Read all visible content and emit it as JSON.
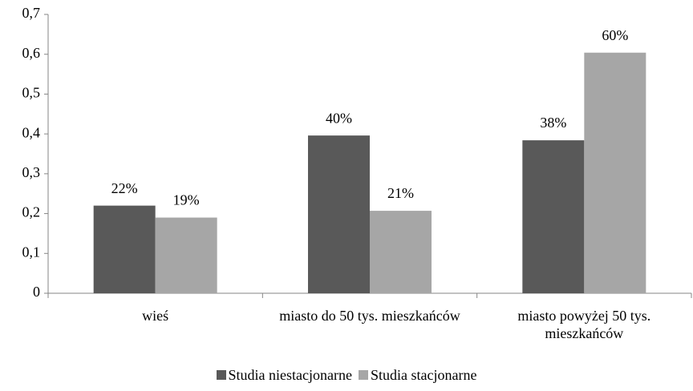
{
  "chart_data": {
    "type": "bar",
    "categories": [
      "wieś",
      "miasto do 50 tys. mieszkańców",
      "miasto powyżej 50 tys. mieszkańców"
    ],
    "series": [
      {
        "name": "Studia niestacjonarne",
        "color": "#595959",
        "values": [
          0.22,
          0.396,
          0.384
        ],
        "value_labels": [
          "22%",
          "40%",
          "38%"
        ]
      },
      {
        "name": "Studia stacjonarne",
        "color": "#a6a6a6",
        "values": [
          0.19,
          0.207,
          0.604
        ],
        "value_labels": [
          "19%",
          "21%",
          "60%"
        ]
      }
    ],
    "ylim": [
      0,
      0.7
    ],
    "yticks": [
      0,
      {
        "value": 0.1,
        "label": "0,1"
      },
      {
        "value": 0.2,
        "label": "0,2"
      },
      {
        "value": 0.3,
        "label": "0,3"
      },
      {
        "value": 0.4,
        "label": "0,4"
      },
      {
        "value": 0.5,
        "label": "0,5"
      },
      {
        "value": 0.6,
        "label": "0,6"
      },
      {
        "value": 0.7,
        "label": "0,7"
      }
    ],
    "legend": "bottom"
  }
}
